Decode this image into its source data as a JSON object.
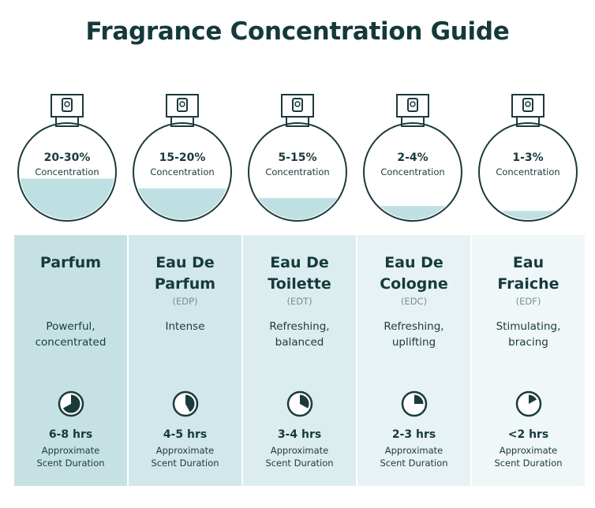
{
  "title": "Fragrance Concentration Guide",
  "colors": {
    "title": "#14393b",
    "liquid": "#bfe0e3",
    "outline": "#1b3a3c",
    "panels": [
      "#c6e1e3",
      "#d1e7e9",
      "#dcedef",
      "#e6f2f3",
      "#eff7f8"
    ]
  },
  "types": [
    {
      "concentration": "20-30%",
      "concentration_label": "Concentration",
      "name_line1": "Parfum",
      "name_line2": "",
      "abbr": "",
      "desc_line1": "Powerful,",
      "desc_line2": "concentrated",
      "duration": "6-8 hrs",
      "approx_line1": "Approximate",
      "approx_line2": "Scent Duration",
      "fill_level": 0.4,
      "clock_fraction": 0.67,
      "icon": "clock-icon"
    },
    {
      "concentration": "15-20%",
      "concentration_label": "Concentration",
      "name_line1": "Eau De",
      "name_line2": "Parfum",
      "abbr": "(EDP)",
      "desc_line1": "Intense",
      "desc_line2": "",
      "duration": "4-5 hrs",
      "approx_line1": "Approximate",
      "approx_line2": "Scent Duration",
      "fill_level": 0.3,
      "clock_fraction": 0.42,
      "icon": "clock-icon"
    },
    {
      "concentration": "5-15%",
      "concentration_label": "Concentration",
      "name_line1": "Eau De",
      "name_line2": "Toilette",
      "abbr": "(EDT)",
      "desc_line1": "Refreshing,",
      "desc_line2": "balanced",
      "duration": "3-4 hrs",
      "approx_line1": "Approximate",
      "approx_line2": "Scent Duration",
      "fill_level": 0.2,
      "clock_fraction": 0.33,
      "icon": "clock-icon"
    },
    {
      "concentration": "2-4%",
      "concentration_label": "Concentration",
      "name_line1": "Eau De",
      "name_line2": "Cologne",
      "abbr": "(EDC)",
      "desc_line1": "Refreshing,",
      "desc_line2": "uplifting",
      "duration": "2-3 hrs",
      "approx_line1": "Approximate",
      "approx_line2": "Scent Duration",
      "fill_level": 0.12,
      "clock_fraction": 0.25,
      "icon": "clock-icon"
    },
    {
      "concentration": "1-3%",
      "concentration_label": "Concentration",
      "name_line1": "Eau",
      "name_line2": "Fraiche",
      "abbr": "(EDF)",
      "desc_line1": "Stimulating,",
      "desc_line2": "bracing",
      "duration": "<2 hrs",
      "approx_line1": "Approximate",
      "approx_line2": "Scent Duration",
      "fill_level": 0.07,
      "clock_fraction": 0.17,
      "icon": "clock-icon"
    }
  ]
}
